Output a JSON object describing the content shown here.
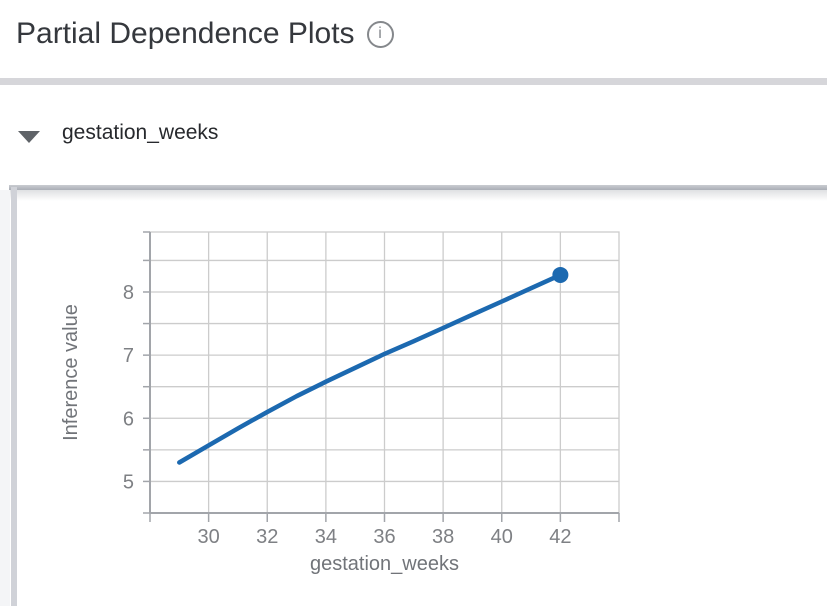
{
  "header": {
    "title": "Partial Dependence Plots",
    "info_tooltip_glyph": "i"
  },
  "section": {
    "label": "gestation_weeks"
  },
  "chart_data": {
    "type": "line",
    "title": "",
    "xlabel": "gestation_weeks",
    "ylabel": "Inference value",
    "x": [
      29,
      30,
      31,
      32,
      33,
      34,
      35,
      36,
      37,
      38,
      39,
      40,
      41,
      42
    ],
    "y": [
      5.3,
      5.57,
      5.84,
      6.1,
      6.35,
      6.58,
      6.8,
      7.02,
      7.22,
      7.43,
      7.64,
      7.85,
      8.06,
      8.27
    ],
    "xlim": [
      28,
      44
    ],
    "ylim": [
      4.5,
      8.95
    ],
    "xticks": [
      30,
      32,
      34,
      36,
      38,
      40,
      42
    ],
    "yticks": [
      5,
      6,
      7,
      8
    ],
    "y_minor_step": 0.5,
    "grid": true,
    "legend": "none",
    "line_color": "#1c69b0",
    "grid_color": "#cccccc",
    "axis_color": "#a2a5aa",
    "tick_label_color": "#7e8084",
    "axis_title_color": "#717479",
    "endpoint_marker": {
      "x": 42,
      "y": 8.27,
      "radius": 8
    }
  },
  "colors": {
    "divider": "#d6d6da",
    "scroll_bar_dark": "#aaaeb6",
    "scroll_gutter": "#f4f5f7",
    "scrollbar_thumb": "#d0d2d8",
    "title_text": "#35383d",
    "section_text": "#27292d",
    "caret_gray": "#5f6368",
    "info_icon_gray": "#85888c"
  }
}
